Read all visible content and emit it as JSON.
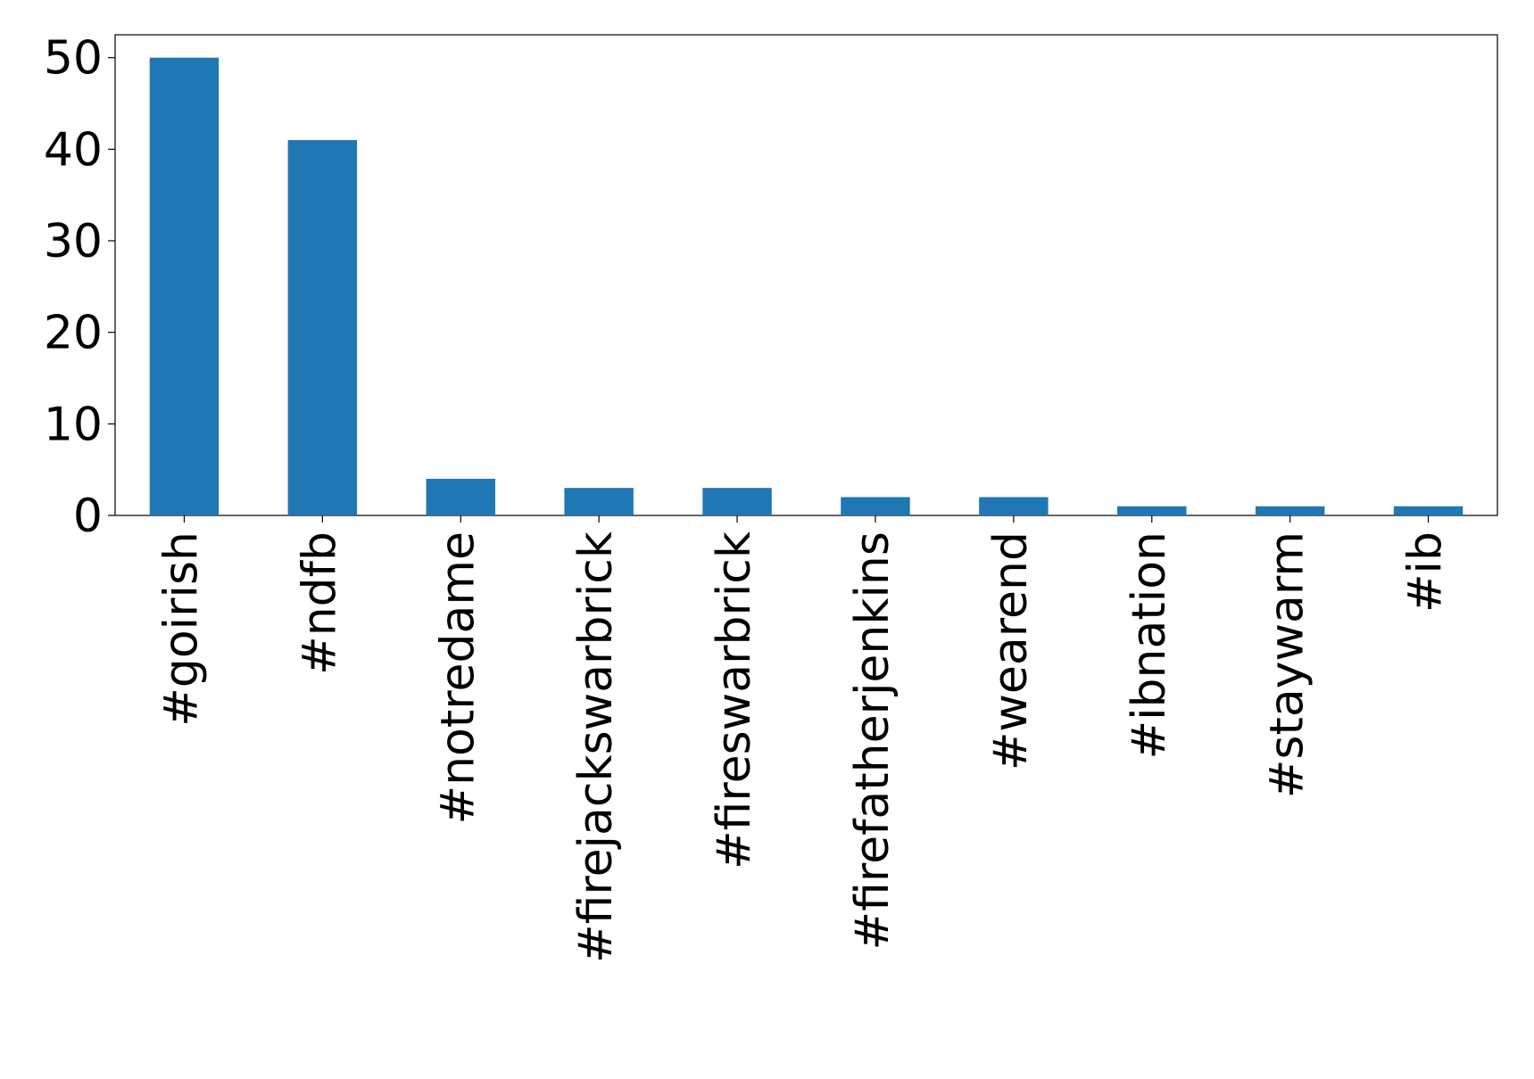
{
  "chart_data": {
    "type": "bar",
    "categories": [
      "#goirish",
      "#ndfb",
      "#notredame",
      "#firejackswarbrick",
      "#fireswarbrick",
      "#firefatherjenkins",
      "#wearend",
      "#ibnation",
      "#staywarm",
      "#ib"
    ],
    "values": [
      50,
      41,
      4,
      3,
      3,
      2,
      2,
      1,
      1,
      1
    ],
    "color": "#1f77b4",
    "ylim": [
      0,
      52.5
    ],
    "yticks": [
      0,
      10,
      20,
      30,
      40,
      50
    ],
    "grid": false
  }
}
